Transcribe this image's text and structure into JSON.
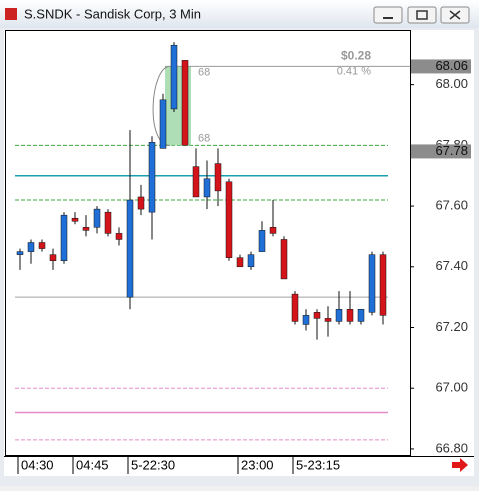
{
  "chart_data": {
    "type": "candlestick",
    "title": "S.SNDK - Sandisk Corp, 3 Min",
    "categories": [
      "04:30",
      null,
      null,
      null,
      null,
      "04:45",
      null,
      null,
      null,
      null,
      "5-22:30",
      null,
      null,
      null,
      null,
      null,
      null,
      null,
      null,
      null,
      "23:00",
      null,
      null,
      null,
      null,
      "5-23:15",
      null,
      null,
      null,
      null,
      null,
      null,
      null,
      null
    ],
    "open": [
      67.44,
      67.45,
      67.48,
      67.44,
      67.42,
      67.56,
      67.53,
      67.53,
      67.58,
      67.51,
      67.3,
      67.63,
      67.58,
      67.79,
      67.92,
      68.08,
      67.73,
      67.63,
      67.74,
      67.68,
      67.43,
      67.4,
      67.45,
      67.53,
      67.49,
      67.31,
      67.21,
      67.25,
      67.23,
      67.22,
      67.26,
      67.22,
      67.25,
      67.44
    ],
    "high": [
      67.46,
      67.49,
      67.49,
      67.46,
      67.58,
      67.58,
      67.57,
      67.6,
      67.59,
      67.53,
      67.85,
      67.67,
      67.83,
      67.97,
      68.14,
      68.08,
      67.79,
      67.75,
      67.79,
      67.69,
      67.44,
      67.45,
      67.55,
      67.62,
      67.5,
      67.32,
      67.26,
      67.26,
      67.27,
      67.32,
      67.32,
      67.26,
      67.45,
      67.45
    ],
    "low": [
      67.39,
      67.41,
      67.45,
      67.39,
      67.41,
      67.54,
      67.5,
      67.51,
      67.5,
      67.47,
      67.26,
      67.57,
      67.49,
      67.79,
      67.91,
      67.8,
      67.63,
      67.59,
      67.6,
      67.42,
      67.4,
      67.39,
      67.45,
      67.5,
      67.36,
      67.21,
      67.19,
      67.16,
      67.17,
      67.21,
      67.21,
      67.21,
      67.24,
      67.21
    ],
    "close": [
      67.45,
      67.48,
      67.46,
      67.42,
      67.57,
      67.55,
      67.52,
      67.59,
      67.51,
      67.49,
      67.62,
      67.59,
      67.81,
      67.95,
      68.13,
      67.8,
      67.63,
      67.69,
      67.65,
      67.43,
      67.4,
      67.44,
      67.52,
      67.51,
      67.36,
      67.22,
      67.24,
      67.23,
      67.22,
      67.26,
      67.22,
      67.26,
      67.44,
      67.24
    ],
    "up_color": "#1f6fd6",
    "down_color": "#d4141b",
    "ylim": [
      66.78,
      68.18
    ],
    "yticks": [
      {
        "value": 66.8,
        "label": "66.80"
      },
      {
        "value": 67.0,
        "label": "67.00"
      },
      {
        "value": 67.2,
        "label": "67.20"
      },
      {
        "value": 67.4,
        "label": "67.40"
      },
      {
        "value": 67.6,
        "label": "67.60"
      },
      {
        "value": 67.8,
        "label": "67.80"
      },
      {
        "value": 68.0,
        "label": "68.00"
      }
    ],
    "levels": [
      {
        "value": 67.8,
        "color": "#3aa63a",
        "style": "dashed"
      },
      {
        "value": 67.62,
        "color": "#3aa63a",
        "style": "dashed"
      },
      {
        "value": 67.7,
        "color": "#1a9fb0",
        "style": "solid"
      },
      {
        "value": 67.3,
        "color": "#a0a0a0",
        "style": "solid"
      },
      {
        "value": 67.0,
        "color": "#e58cc8",
        "style": "dashed"
      },
      {
        "value": 66.92,
        "color": "#e58cc8",
        "style": "solid"
      },
      {
        "value": 66.83,
        "color": "#e58cc8",
        "style": "dashed"
      }
    ],
    "price_markers": [
      {
        "value": 68.06,
        "label": "68.06"
      },
      {
        "value": 67.78,
        "label": "67.78"
      }
    ],
    "measure": {
      "from": 68.06,
      "to": 67.8,
      "from_label": "68",
      "to_label": "68",
      "change": "$0.28",
      "percent": "0.41 %"
    }
  }
}
